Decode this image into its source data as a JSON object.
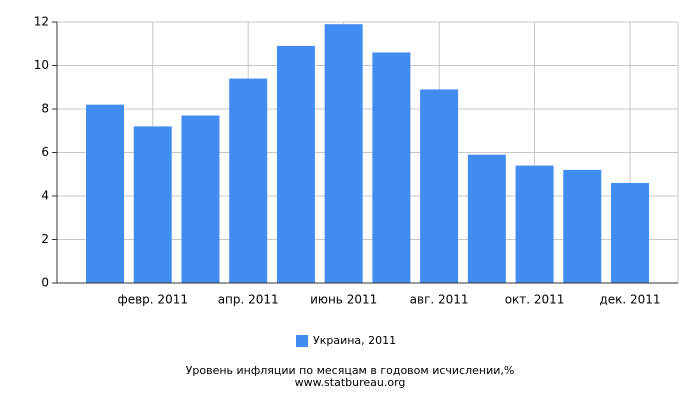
{
  "chart_data": {
    "type": "bar",
    "title": "Уровень инфляции по месяцам в годовом исчислении,%",
    "subtitle": "www.statbureau.org",
    "categories": [
      null,
      "февр. 2011",
      null,
      "апр. 2011",
      null,
      "июнь 2011",
      null,
      "авг. 2011",
      null,
      "окт. 2011",
      null,
      "дек. 2011"
    ],
    "series": [
      {
        "name": "Украина, 2011",
        "color": "#418cf0",
        "values": [
          8.2,
          7.2,
          7.7,
          9.4,
          10.9,
          11.9,
          10.6,
          8.9,
          5.9,
          5.4,
          5.2,
          4.6
        ]
      }
    ],
    "ylim": [
      0,
      12
    ],
    "yticks": [
      0,
      2,
      4,
      6,
      8,
      10,
      12
    ],
    "grid": true
  }
}
